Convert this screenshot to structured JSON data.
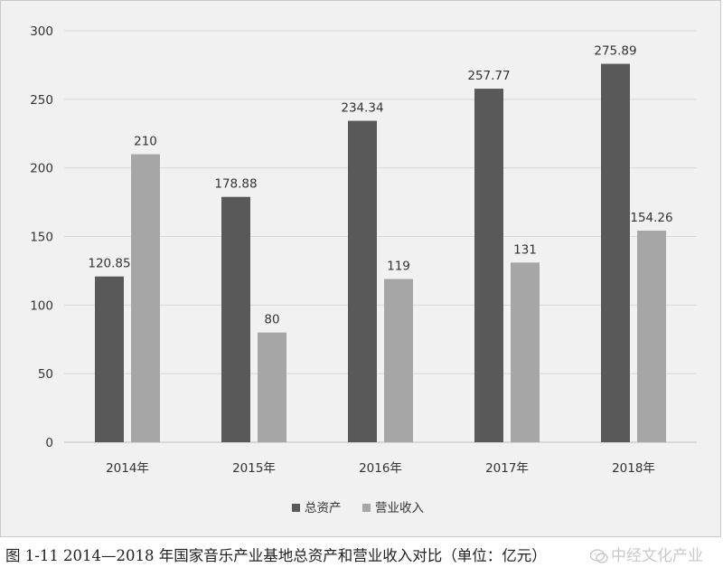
{
  "caption": "图 1-11 2014—2018 年国家音乐产业基地总资产和营业收入对比（单位：亿元）",
  "watermark": "中经文化产业",
  "chart_data": {
    "type": "bar",
    "categories": [
      "2014年",
      "2015年",
      "2016年",
      "2017年",
      "2018年"
    ],
    "series": [
      {
        "name": "总资产",
        "values": [
          120.85,
          178.88,
          234.34,
          257.77,
          275.89
        ],
        "labels": [
          "120.85",
          "178.88",
          "234.34",
          "257.77",
          "275.89"
        ],
        "color": "#595959"
      },
      {
        "name": "营业收入",
        "values": [
          210,
          80,
          119,
          131,
          154.26
        ],
        "labels": [
          "210",
          "80",
          "119",
          "131",
          "154.26"
        ],
        "color": "#a6a6a6"
      }
    ],
    "ylim": [
      0,
      300
    ],
    "yticks": [
      0,
      50,
      100,
      150,
      200,
      250,
      300
    ],
    "grid": true,
    "legend": "bottom-center",
    "title": "",
    "xlabel": "",
    "ylabel": ""
  }
}
